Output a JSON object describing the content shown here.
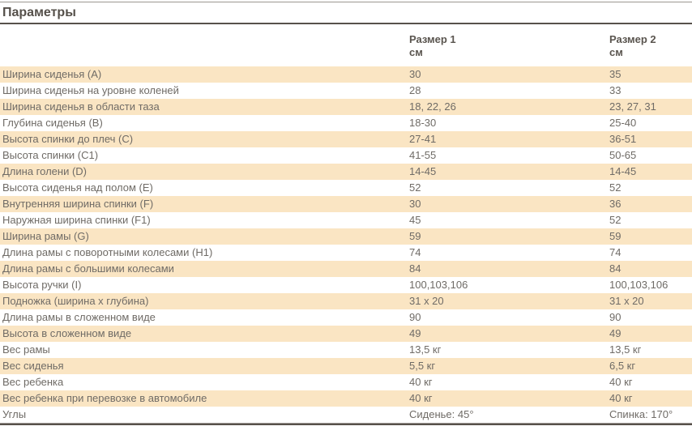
{
  "title": "Параметры",
  "colors": {
    "stripe_bg": "#FAE5C3",
    "rule_light": "#9B9691",
    "rule_dark": "#57514B",
    "heading_text": "#55504A",
    "header_text": "#5A554F",
    "body_text": "#6F6B66",
    "page_bg": "#FFFFFF"
  },
  "table": {
    "header": {
      "size1": {
        "name": "Размер 1",
        "unit": "см"
      },
      "size2": {
        "name": "Размер 2",
        "unit": "см"
      }
    },
    "rows": [
      {
        "label": "Ширина сиденья (A)",
        "size1": "30",
        "size2": "35"
      },
      {
        "label": "Ширина сиденья на уровне коленей",
        "size1": "28",
        "size2": "33"
      },
      {
        "label": "Ширина сиденья в области таза",
        "size1": "18, 22, 26",
        "size2": "23, 27, 31"
      },
      {
        "label": "Глубина сиденья (B)",
        "size1": "18-30",
        "size2": "25-40"
      },
      {
        "label": "Высота спинки до плеч (C)",
        "size1": "27-41",
        "size2": "36-51"
      },
      {
        "label": "Высота спинки (C1)",
        "size1": "41-55",
        "size2": "50-65"
      },
      {
        "label": "Длина голени (D)",
        "size1": "14-45",
        "size2": "14-45"
      },
      {
        "label": "Высота сиденья над полом (E)",
        "size1": "52",
        "size2": "52"
      },
      {
        "label": "Внутренняя ширина спинки (F)",
        "size1": "30",
        "size2": "36"
      },
      {
        "label": "Наружная ширина спинки (F1)",
        "size1": "45",
        "size2": "52"
      },
      {
        "label": "Ширина рамы (G)",
        "size1": "59",
        "size2": "59"
      },
      {
        "label": "Длина рамы с поворотными колесами (H1)",
        "size1": "74",
        "size2": "74"
      },
      {
        "label": "Длина рамы с большими колесами",
        "size1": "84",
        "size2": "84"
      },
      {
        "label": "Высота ручки (I)",
        "size1": "100,103,106",
        "size2": "100,103,106"
      },
      {
        "label": "Подножка (ширина x глубина)",
        "size1": "31 x 20",
        "size2": "31 x 20"
      },
      {
        "label": "Длина рамы в сложенном виде",
        "size1": "90",
        "size2": "90"
      },
      {
        "label": "Высота в сложенном виде",
        "size1": "49",
        "size2": "49"
      },
      {
        "label": "Вес рамы",
        "size1": "13,5 кг",
        "size2": "13,5 кг"
      },
      {
        "label": "Вес сиденья",
        "size1": "5,5 кг",
        "size2": "6,5 кг"
      },
      {
        "label": "Вес ребенка",
        "size1": "40 кг",
        "size2": "40 кг"
      },
      {
        "label": "Вес ребенка при перевозке в автомобиле",
        "size1": "40 кг",
        "size2": "40 кг"
      },
      {
        "label": "Углы",
        "size1": "Сиденье: 45°",
        "size2": "Спинка: 170°"
      }
    ]
  }
}
